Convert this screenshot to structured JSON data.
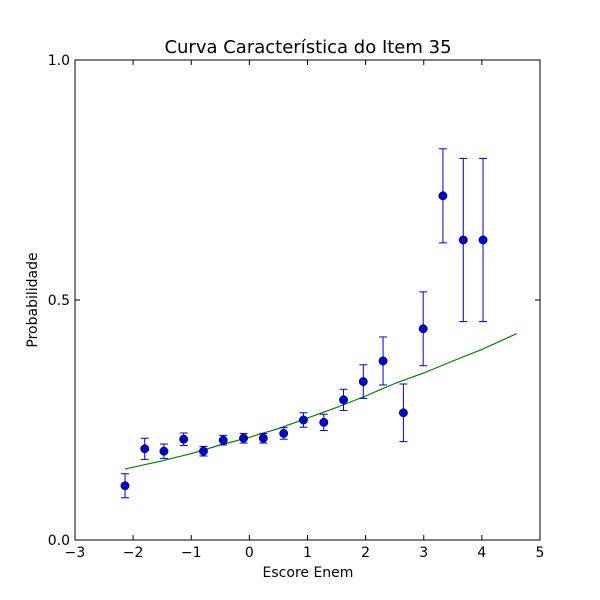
{
  "chart_data": {
    "type": "scatter",
    "title": "Curva Característica do Item 35",
    "xlabel": "Escore Enem",
    "ylabel": "Probabilidade",
    "xlim": [
      -3,
      5
    ],
    "ylim": [
      0,
      1
    ],
    "xticks": [
      -3,
      -2,
      -1,
      0,
      1,
      2,
      3,
      4,
      5
    ],
    "xtick_labels": [
      "−3",
      "−2",
      "−1",
      "0",
      "1",
      "2",
      "3",
      "4",
      "5"
    ],
    "yticks": [
      0,
      0.5,
      1
    ],
    "ytick_labels": [
      "0.0",
      "0.5",
      "1.0"
    ],
    "grid": false,
    "legend": "none",
    "points": {
      "x": [
        -2.14,
        -1.8,
        -1.47,
        -1.13,
        -0.79,
        -0.45,
        -0.1,
        0.24,
        0.59,
        0.93,
        1.28,
        1.62,
        1.96,
        2.3,
        2.65,
        2.99,
        3.33,
        3.68,
        4.02
      ],
      "y": [
        0.113,
        0.19,
        0.185,
        0.21,
        0.185,
        0.208,
        0.212,
        0.212,
        0.222,
        0.25,
        0.245,
        0.292,
        0.33,
        0.373,
        0.265,
        0.44,
        0.717,
        0.625,
        0.625
      ],
      "yerr": [
        0.025,
        0.022,
        0.015,
        0.013,
        0.01,
        0.01,
        0.01,
        0.01,
        0.012,
        0.015,
        0.017,
        0.022,
        0.035,
        0.05,
        0.06,
        0.077,
        0.098,
        0.17,
        0.17
      ],
      "color": "#0000cc"
    },
    "curve": {
      "x": [
        -2.14,
        -1.5,
        -1.0,
        -0.5,
        0.0,
        0.5,
        1.0,
        1.5,
        2.0,
        2.5,
        3.0,
        3.5,
        4.0,
        4.6
      ],
      "y": [
        0.148,
        0.165,
        0.18,
        0.198,
        0.214,
        0.232,
        0.254,
        0.276,
        0.3,
        0.326,
        0.348,
        0.373,
        0.397,
        0.43
      ],
      "color": "#007f00"
    }
  }
}
